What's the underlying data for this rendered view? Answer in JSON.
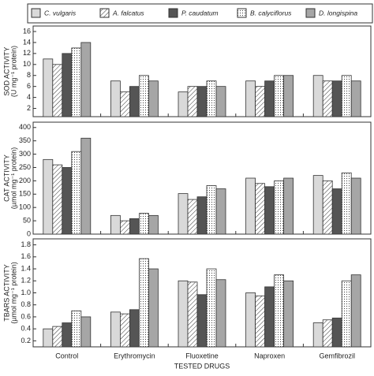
{
  "chart_data": [
    {
      "type": "bar",
      "ylabel": [
        "SOD ACTIVITY",
        "(U mg⁻¹ protein)"
      ],
      "ylim": [
        0.5,
        17
      ],
      "yticks": [
        2,
        4,
        6,
        8,
        10,
        12,
        14,
        16
      ],
      "series": [
        {
          "name": "C. vulgaris",
          "color": "#d9d9d9",
          "values": [
            11,
            7,
            5,
            7,
            8
          ]
        },
        {
          "name": "A. falcatus",
          "color": "#ffffff",
          "pattern": "hatch",
          "values": [
            10,
            5,
            6,
            6,
            7
          ]
        },
        {
          "name": "P. caudatum",
          "color": "#555555",
          "values": [
            12,
            6,
            6,
            7,
            7
          ]
        },
        {
          "name": "B. calyciflorus",
          "color": "#ffffff",
          "pattern": "dots",
          "values": [
            13,
            8,
            7,
            8,
            8
          ]
        },
        {
          "name": "D. longispina",
          "color": "#a6a6a6",
          "values": [
            14,
            7,
            6,
            8,
            7
          ]
        }
      ]
    },
    {
      "type": "bar",
      "ylabel": [
        "CAT ACTIVITY",
        "(µmol mg⁻¹ protein)"
      ],
      "ylim": [
        0,
        420
      ],
      "yticks": [
        0,
        50,
        100,
        150,
        200,
        250,
        300,
        350,
        400
      ],
      "series": [
        {
          "values": [
            280,
            70,
            152,
            210,
            220
          ]
        },
        {
          "values": [
            260,
            50,
            130,
            190,
            200
          ]
        },
        {
          "values": [
            250,
            58,
            140,
            178,
            170
          ]
        },
        {
          "values": [
            310,
            78,
            182,
            200,
            230
          ]
        },
        {
          "values": [
            360,
            70,
            170,
            210,
            210
          ]
        }
      ]
    },
    {
      "type": "bar",
      "ylabel": [
        "TBARS ACTIVITY",
        "(µmol mg⁻¹ protein)"
      ],
      "ylim": [
        0.1,
        1.9
      ],
      "yticks": [
        0.2,
        0.4,
        0.6,
        0.8,
        {
          "value": 1,
          "label": "1.0"
        },
        1.2,
        1.4,
        1.6,
        1.8
      ],
      "categories": [
        "Control",
        "Erythromycin",
        "Fluoxetine",
        "Naproxen",
        "Gemfibrozil"
      ],
      "xlabel": "TESTED DRUGS",
      "series": [
        {
          "values": [
            0.4,
            0.68,
            1.2,
            1.0,
            0.5
          ]
        },
        {
          "values": [
            0.44,
            0.65,
            1.18,
            0.95,
            0.55
          ]
        },
        {
          "values": [
            0.5,
            0.72,
            0.97,
            1.1,
            0.58
          ]
        },
        {
          "values": [
            0.7,
            1.57,
            1.4,
            1.3,
            1.2
          ]
        },
        {
          "values": [
            0.6,
            1.4,
            1.22,
            1.2,
            1.3
          ]
        }
      ]
    }
  ]
}
